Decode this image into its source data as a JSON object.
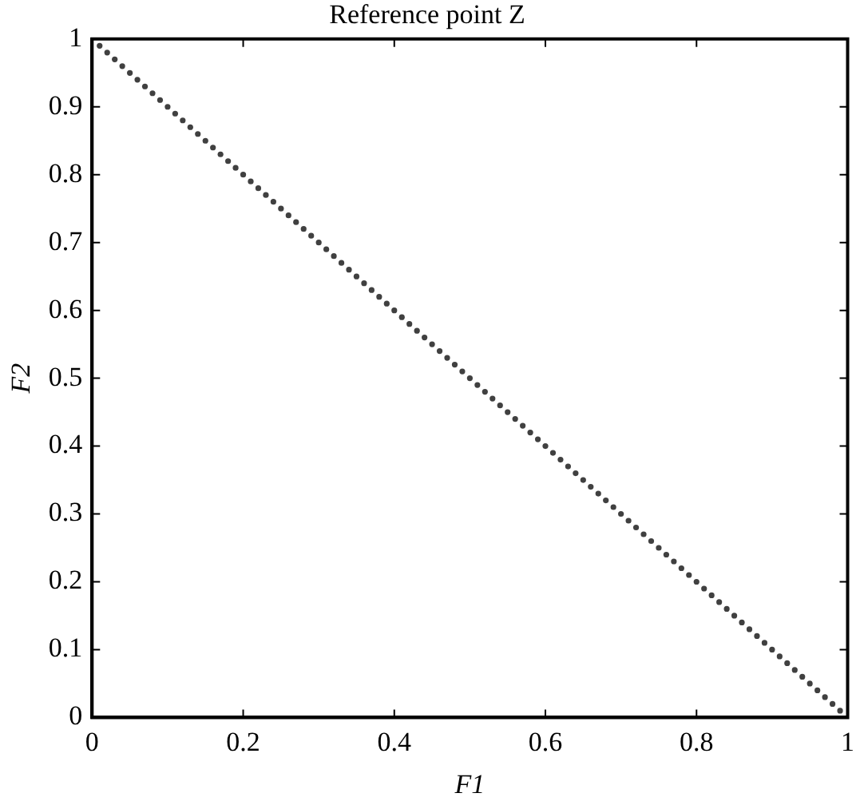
{
  "chart_data": {
    "type": "scatter",
    "title": "Reference point Z",
    "xlabel": "F1",
    "ylabel": "F2",
    "marker": "circle",
    "xlim": [
      0,
      1
    ],
    "ylim": [
      0,
      1
    ],
    "xticks": [
      0,
      0.2,
      0.4,
      0.6,
      0.8,
      1
    ],
    "yticks": [
      0,
      0.1,
      0.2,
      0.3,
      0.4,
      0.5,
      0.6,
      0.7,
      0.8,
      0.9,
      1
    ],
    "grid": false,
    "legend": false,
    "series": [
      {
        "color": "#404040",
        "x": [
          0.01,
          0.02,
          0.03,
          0.04,
          0.05,
          0.06,
          0.07,
          0.08,
          0.09,
          0.1,
          0.11,
          0.12,
          0.13,
          0.14,
          0.15,
          0.16,
          0.17,
          0.18,
          0.19,
          0.2,
          0.21,
          0.22,
          0.23,
          0.24,
          0.25,
          0.26,
          0.27,
          0.28,
          0.29,
          0.3,
          0.31,
          0.32,
          0.33,
          0.34,
          0.35,
          0.36,
          0.37,
          0.38,
          0.39,
          0.4,
          0.41,
          0.42,
          0.43,
          0.44,
          0.45,
          0.46,
          0.47,
          0.48,
          0.49,
          0.5,
          0.51,
          0.52,
          0.53,
          0.54,
          0.55,
          0.56,
          0.57,
          0.58,
          0.59,
          0.6,
          0.61,
          0.62,
          0.63,
          0.64,
          0.65,
          0.66,
          0.67,
          0.68,
          0.69,
          0.7,
          0.71,
          0.72,
          0.73,
          0.74,
          0.75,
          0.76,
          0.77,
          0.78,
          0.79,
          0.8,
          0.81,
          0.82,
          0.83,
          0.84,
          0.85,
          0.86,
          0.87,
          0.88,
          0.89,
          0.9,
          0.91,
          0.92,
          0.93,
          0.94,
          0.95,
          0.96,
          0.97,
          0.98,
          0.99
        ],
        "values": [
          0.99,
          0.98,
          0.97,
          0.96,
          0.95,
          0.94,
          0.93,
          0.92,
          0.91,
          0.9,
          0.89,
          0.88,
          0.87,
          0.86,
          0.85,
          0.84,
          0.83,
          0.82,
          0.81,
          0.8,
          0.79,
          0.78,
          0.77,
          0.76,
          0.75,
          0.74,
          0.73,
          0.72,
          0.71,
          0.7,
          0.69,
          0.68,
          0.67,
          0.66,
          0.65,
          0.64,
          0.63,
          0.62,
          0.61,
          0.6,
          0.59,
          0.58,
          0.57,
          0.56,
          0.55,
          0.54,
          0.53,
          0.52,
          0.51,
          0.5,
          0.49,
          0.48,
          0.47,
          0.46,
          0.45,
          0.44,
          0.43,
          0.42,
          0.41,
          0.4,
          0.39,
          0.38,
          0.37,
          0.36,
          0.35,
          0.34,
          0.33,
          0.32,
          0.31,
          0.3,
          0.29,
          0.28,
          0.27,
          0.26,
          0.25,
          0.24,
          0.23,
          0.22,
          0.21,
          0.2,
          0.19,
          0.18,
          0.17,
          0.16,
          0.15,
          0.14,
          0.13,
          0.12,
          0.11,
          0.1,
          0.09,
          0.08,
          0.07,
          0.06,
          0.05,
          0.04,
          0.03,
          0.02,
          0.01
        ]
      }
    ]
  }
}
